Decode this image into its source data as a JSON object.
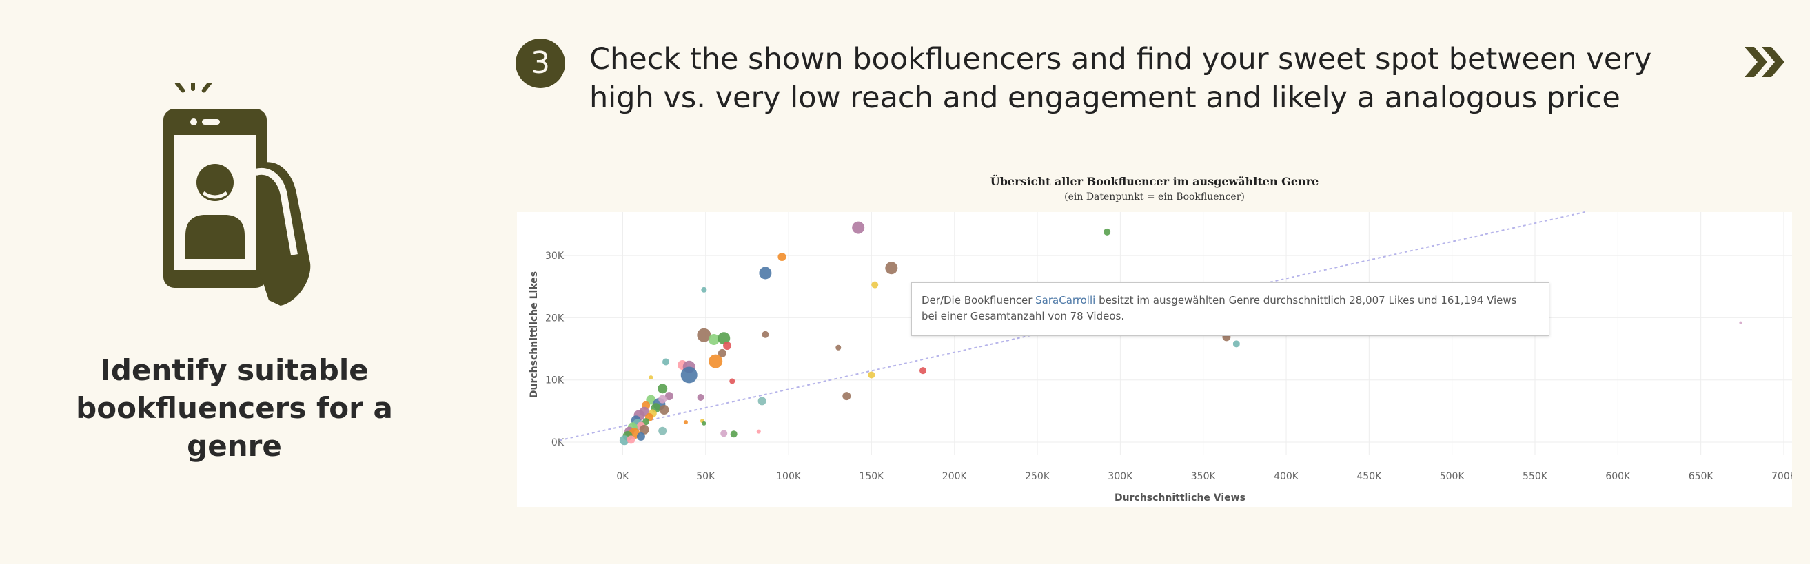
{
  "left_panel": {
    "icon": "hand-holding-phone-icon",
    "caption": "Identify suitable bookfluencers for a genre"
  },
  "step": {
    "number": "3",
    "text": "Check the shown bookfluencers and find your sweet spot between very high vs. very low reach and engagement and likely a analogous price"
  },
  "navigation": {
    "next_icon": "double-chevron-right-icon"
  },
  "colors": {
    "background": "#fbf8ef",
    "accent": "#4d4b22",
    "trend_line": "#b6b4ea",
    "points": [
      "#4e79a7",
      "#f28e2b",
      "#59a14f",
      "#b07aa1",
      "#9c755f",
      "#e15759",
      "#76b7b2",
      "#edc948",
      "#ff9da7",
      "#8cd17d",
      "#86bcb6",
      "#d4a6c8"
    ]
  },
  "tooltip": {
    "prefix": "Der/Die Bookfluencer ",
    "name": "SaraCarrolli",
    "suffix": " besitzt im ausgewählten Genre durchschnittlich 28,007 Likes und 161,194 Views",
    "line2": "bei einer Gesamtanzahl von 78 Videos."
  },
  "chart_data": {
    "type": "scatter",
    "title": "Übersicht aller Bookfluencer im ausgewählten Genre",
    "subtitle": "(ein Datenpunkt = ein Bookfluencer)",
    "xlabel": "Durchschnittliche Views",
    "ylabel": "Durchschnittliche Likes",
    "xlim": [
      -38000,
      705000
    ],
    "ylim": [
      -2000,
      37000
    ],
    "x_ticks": [
      0,
      50000,
      100000,
      150000,
      200000,
      250000,
      300000,
      350000,
      400000,
      450000,
      500000,
      550000,
      600000,
      650000,
      700000
    ],
    "x_tick_labels": [
      "0K",
      "50K",
      "100K",
      "150K",
      "200K",
      "250K",
      "300K",
      "350K",
      "400K",
      "450K",
      "500K",
      "550K",
      "600K",
      "650K",
      "700K"
    ],
    "y_ticks": [
      0,
      10000,
      20000,
      30000
    ],
    "y_tick_labels": [
      "0K",
      "10K",
      "20K",
      "30K"
    ],
    "grid": true,
    "legend": "none",
    "trend_line": [
      [
        -38000,
        300
      ],
      [
        580000,
        37000
      ]
    ],
    "points": [
      {
        "x": 142000,
        "y": 34500,
        "r": 9,
        "c": 3
      },
      {
        "x": 96000,
        "y": 29800,
        "r": 6,
        "c": 1
      },
      {
        "x": 162000,
        "y": 28000,
        "r": 9,
        "c": 4
      },
      {
        "x": 86000,
        "y": 27200,
        "r": 9,
        "c": 0
      },
      {
        "x": 152000,
        "y": 25300,
        "r": 5,
        "c": 7
      },
      {
        "x": 49000,
        "y": 24500,
        "r": 4,
        "c": 6
      },
      {
        "x": 292000,
        "y": 33800,
        "r": 5,
        "c": 2
      },
      {
        "x": 49000,
        "y": 17200,
        "r": 10,
        "c": 4
      },
      {
        "x": 55000,
        "y": 16500,
        "r": 8,
        "c": 9
      },
      {
        "x": 61000,
        "y": 16700,
        "r": 9,
        "c": 2
      },
      {
        "x": 86000,
        "y": 17300,
        "r": 5,
        "c": 4
      },
      {
        "x": 63000,
        "y": 15500,
        "r": 6,
        "c": 5
      },
      {
        "x": 130000,
        "y": 15200,
        "r": 4,
        "c": 4
      },
      {
        "x": 60000,
        "y": 14300,
        "r": 6,
        "c": 4
      },
      {
        "x": 26000,
        "y": 12900,
        "r": 5,
        "c": 6
      },
      {
        "x": 56000,
        "y": 13000,
        "r": 10,
        "c": 1
      },
      {
        "x": 36000,
        "y": 12400,
        "r": 7,
        "c": 8
      },
      {
        "x": 40000,
        "y": 12100,
        "r": 9,
        "c": 3
      },
      {
        "x": 40000,
        "y": 10800,
        "r": 12,
        "c": 0
      },
      {
        "x": 181000,
        "y": 11500,
        "r": 5,
        "c": 5
      },
      {
        "x": 150000,
        "y": 10800,
        "r": 5,
        "c": 7
      },
      {
        "x": 66000,
        "y": 9800,
        "r": 4,
        "c": 5
      },
      {
        "x": 17000,
        "y": 10400,
        "r": 3,
        "c": 7
      },
      {
        "x": 24000,
        "y": 8600,
        "r": 7,
        "c": 2
      },
      {
        "x": 28000,
        "y": 7400,
        "r": 6,
        "c": 3
      },
      {
        "x": 47000,
        "y": 7200,
        "r": 5,
        "c": 3
      },
      {
        "x": 135000,
        "y": 7400,
        "r": 6,
        "c": 4
      },
      {
        "x": 84000,
        "y": 6600,
        "r": 6,
        "c": 10
      },
      {
        "x": 17000,
        "y": 6800,
        "r": 7,
        "c": 9
      },
      {
        "x": 22000,
        "y": 6100,
        "r": 9,
        "c": 0
      },
      {
        "x": 24000,
        "y": 6900,
        "r": 6,
        "c": 11
      },
      {
        "x": 14000,
        "y": 5900,
        "r": 6,
        "c": 1
      },
      {
        "x": 20000,
        "y": 5500,
        "r": 7,
        "c": 2
      },
      {
        "x": 25000,
        "y": 5200,
        "r": 7,
        "c": 4
      },
      {
        "x": 13000,
        "y": 4900,
        "r": 7,
        "c": 3
      },
      {
        "x": 18000,
        "y": 4600,
        "r": 6,
        "c": 7
      },
      {
        "x": 10000,
        "y": 4300,
        "r": 8,
        "c": 3
      },
      {
        "x": 16000,
        "y": 4000,
        "r": 6,
        "c": 1
      },
      {
        "x": 8000,
        "y": 3500,
        "r": 7,
        "c": 0
      },
      {
        "x": 14000,
        "y": 3300,
        "r": 5,
        "c": 2
      },
      {
        "x": 9000,
        "y": 2800,
        "r": 8,
        "c": 6
      },
      {
        "x": 11000,
        "y": 2600,
        "r": 6,
        "c": 8
      },
      {
        "x": 6000,
        "y": 2400,
        "r": 7,
        "c": 9
      },
      {
        "x": 13000,
        "y": 2000,
        "r": 7,
        "c": 4
      },
      {
        "x": 4000,
        "y": 1700,
        "r": 7,
        "c": 3
      },
      {
        "x": 7000,
        "y": 1400,
        "r": 8,
        "c": 1
      },
      {
        "x": 3000,
        "y": 1000,
        "r": 7,
        "c": 2
      },
      {
        "x": 11000,
        "y": 900,
        "r": 6,
        "c": 0
      },
      {
        "x": 1000,
        "y": 300,
        "r": 7,
        "c": 6
      },
      {
        "x": 5000,
        "y": 400,
        "r": 6,
        "c": 8
      },
      {
        "x": 24000,
        "y": 1800,
        "r": 6,
        "c": 10
      },
      {
        "x": 38000,
        "y": 3200,
        "r": 3,
        "c": 1
      },
      {
        "x": 48000,
        "y": 3400,
        "r": 3,
        "c": 7
      },
      {
        "x": 49000,
        "y": 3000,
        "r": 3,
        "c": 2
      },
      {
        "x": 61000,
        "y": 1400,
        "r": 5,
        "c": 11
      },
      {
        "x": 67000,
        "y": 1300,
        "r": 5,
        "c": 2
      },
      {
        "x": 82000,
        "y": 1700,
        "r": 3,
        "c": 8
      },
      {
        "x": 364000,
        "y": 16900,
        "r": 6,
        "c": 4
      },
      {
        "x": 370000,
        "y": 15800,
        "r": 5,
        "c": 6
      },
      {
        "x": 674000,
        "y": 19200,
        "r": 2,
        "c": 11
      }
    ]
  }
}
